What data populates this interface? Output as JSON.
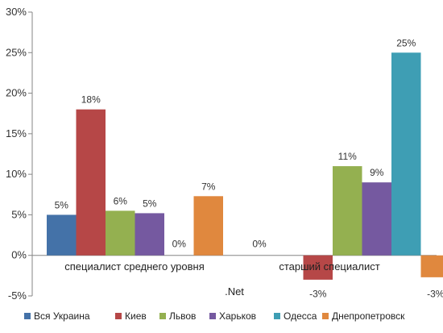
{
  "chart_data": {
    "type": "bar",
    "title": "",
    "subtitle": "",
    "xlabel": "",
    "ylabel": "",
    "ylim": [
      -5,
      30
    ],
    "ytick_step": 5,
    "ytick_labels": [
      "-5%",
      "0%",
      "5%",
      "10%",
      "15%",
      "20%",
      "25%",
      "30%"
    ],
    "grid": false,
    "legend_position": "bottom",
    "categories": [
      "специалист среднего уровня",
      "старший специалист"
    ],
    "group_label": ".Net",
    "series": [
      {
        "name": "Вся Украина",
        "color": "#4472A8",
        "values": [
          5,
          null
        ],
        "labels": [
          "5%",
          ""
        ]
      },
      {
        "name": "Киев",
        "color": "#B64747",
        "values": [
          18,
          -3
        ],
        "labels": [
          "18%",
          "-3%"
        ]
      },
      {
        "name": "Львов",
        "color": "#94B050",
        "values": [
          5.5,
          11
        ],
        "labels": [
          "6%",
          "11%"
        ]
      },
      {
        "name": "Харьков",
        "color": "#7559A0",
        "values": [
          5.2,
          9
        ],
        "labels": [
          "5%",
          "9%"
        ]
      },
      {
        "name": "Одесса",
        "color": "#3E9EB4",
        "values": [
          0,
          25
        ],
        "labels": [
          "0%",
          "25%"
        ]
      },
      {
        "name": "Днепропетровск",
        "color": "#E0883E",
        "values": [
          7.3,
          -2.7
        ],
        "labels": [
          "7%",
          "-3%"
        ]
      }
    ],
    "extra_labels": [
      {
        "text": "0%"
      }
    ]
  }
}
